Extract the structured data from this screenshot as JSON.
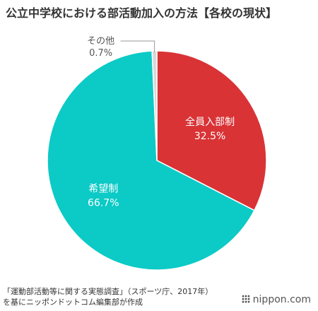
{
  "title": "公立中学校における部活動加入の方法【各校の現状】",
  "chart_data": {
    "type": "pie",
    "title": "公立中学校における部活動加入の方法【各校の現状】",
    "start": "12 o'clock, clockwise",
    "slices": [
      {
        "label": "全員入部制",
        "value": 32.5,
        "value_label": "32.5%",
        "color": "#d93336"
      },
      {
        "label": "希望制",
        "value": 66.7,
        "value_label": "66.7%",
        "color": "#0ccac6"
      },
      {
        "label": "その他",
        "value": 0.7,
        "value_label": "0.7%",
        "color": "#d8d8d8"
      }
    ]
  },
  "source": {
    "line1": "「運動部活動等に関する実態調査」（スポーツ庁、2017年）",
    "line2": "を基にニッポンドットコム編集部が作成"
  },
  "brand": "nippon.com"
}
